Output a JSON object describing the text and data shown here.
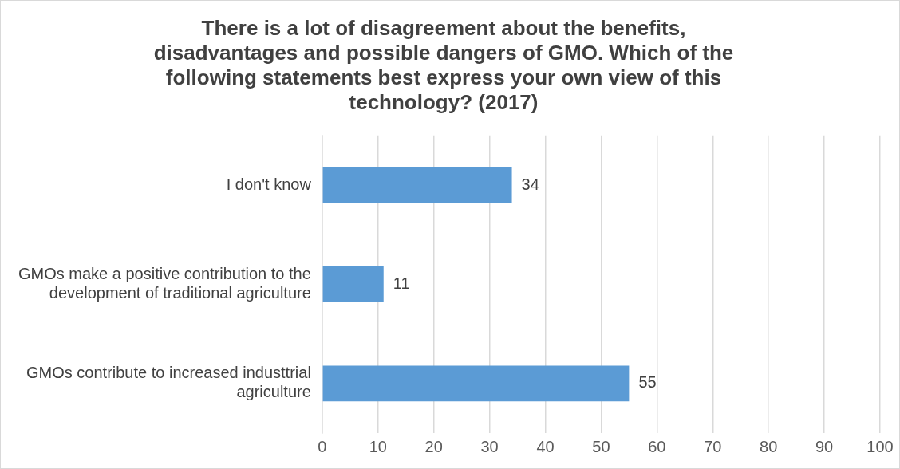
{
  "chart_data": {
    "type": "bar",
    "orientation": "horizontal",
    "title": "There is a lot of disagreement about the benefits, disadvantages and possible dangers of GMO. Which of the following statements best express your own view of this technology? (2017)",
    "categories": [
      "I don't know",
      "GMOs make a positive contribution to the development of traditional agriculture",
      "GMOs contribute to increased industtrial agriculture"
    ],
    "values": [
      34,
      11,
      55
    ],
    "color": "#5b9bd5",
    "xlim": [
      0,
      100
    ],
    "xticks": [
      0,
      10,
      20,
      30,
      40,
      50,
      60,
      70,
      80,
      90,
      100
    ],
    "grid": "x",
    "data_labels": true,
    "legend": false
  }
}
